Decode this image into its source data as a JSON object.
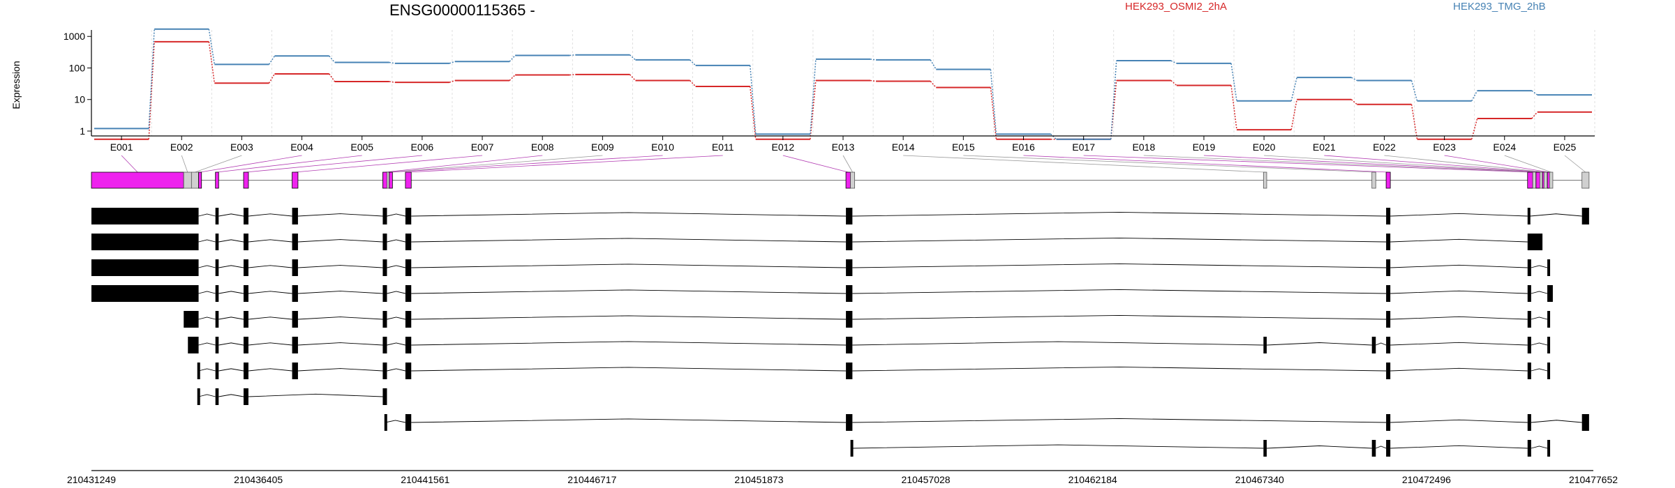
{
  "chart_data": {
    "type": "line",
    "title": "ENSG00000115365 -",
    "xlabel": "",
    "ylabel": "Expression",
    "y_scale": "log",
    "ylim": [
      0.7,
      1600
    ],
    "y_ticks": [
      1,
      10,
      100,
      1000
    ],
    "y_tick_labels": [
      "1",
      "10",
      "100",
      "1000"
    ],
    "grid": true,
    "legend_position": "top-right",
    "categories": [
      "E001",
      "E002",
      "E003",
      "E004",
      "E005",
      "E006",
      "E007",
      "E008",
      "E009",
      "E010",
      "E011",
      "E012",
      "E013",
      "E014",
      "E015",
      "E016",
      "E017",
      "E018",
      "E019",
      "E020",
      "E021",
      "E022",
      "E023",
      "E024",
      "E025"
    ],
    "series": [
      {
        "name": "HEK293_OSMI2_2hA",
        "color": "#d62728",
        "values": [
          0.55,
          680,
          33,
          65,
          37,
          35,
          40,
          60,
          62,
          40,
          26,
          0.55,
          40,
          38,
          24,
          0.55,
          0.55,
          40,
          28,
          1.1,
          10,
          7,
          0.55,
          2.5,
          4
        ]
      },
      {
        "name": "HEK293_TMG_2hB",
        "color": "#4682b4",
        "values": [
          1.2,
          1700,
          130,
          240,
          150,
          140,
          160,
          250,
          260,
          180,
          120,
          0.8,
          190,
          180,
          90,
          0.8,
          0.55,
          170,
          140,
          9,
          50,
          40,
          9,
          19,
          14
        ]
      }
    ],
    "genomic_axis": {
      "ticks": [
        210431249,
        210436405,
        210441561,
        210446717,
        210451873,
        210457028,
        210462184,
        210467340,
        210472496,
        210477652
      ],
      "labels": [
        "210431249",
        "210436405",
        "210441561",
        "210446717",
        "210451873",
        "210457028",
        "210462184",
        "210467340",
        "210472496",
        "210477652"
      ]
    },
    "exons": [
      {
        "id": "E001",
        "start": 210431249,
        "end": 210434100,
        "highlight": true
      },
      {
        "id": "E002",
        "start": 210434100,
        "end": 210434340,
        "highlight": false
      },
      {
        "id": "E003",
        "start": 210434340,
        "end": 210434560,
        "highlight": false
      },
      {
        "id": "E004",
        "start": 210434560,
        "end": 210434650,
        "highlight": true
      },
      {
        "id": "E005",
        "start": 210435080,
        "end": 210435180,
        "highlight": true
      },
      {
        "id": "E006",
        "start": 210435950,
        "end": 210436100,
        "highlight": true
      },
      {
        "id": "E007",
        "start": 210437450,
        "end": 210437630,
        "highlight": true
      },
      {
        "id": "E008",
        "start": 210440250,
        "end": 210440380,
        "highlight": true
      },
      {
        "id": "E009",
        "start": 210440380,
        "end": 210440450,
        "highlight": false
      },
      {
        "id": "E010",
        "start": 210440450,
        "end": 210440550,
        "highlight": true
      },
      {
        "id": "E011",
        "start": 210440950,
        "end": 210441130,
        "highlight": true
      },
      {
        "id": "E012",
        "start": 210454560,
        "end": 210454700,
        "highlight": true
      },
      {
        "id": "E013",
        "start": 210454700,
        "end": 210454830,
        "highlight": false
      },
      {
        "id": "E014",
        "start": 210467460,
        "end": 210467560,
        "highlight": false
      },
      {
        "id": "E015",
        "start": 210470810,
        "end": 210470930,
        "highlight": false
      },
      {
        "id": "E016",
        "start": 210471250,
        "end": 210471380,
        "highlight": true
      },
      {
        "id": "E017",
        "start": 210475620,
        "end": 210475780,
        "highlight": true
      },
      {
        "id": "E018",
        "start": 210475780,
        "end": 210475880,
        "highlight": false
      },
      {
        "id": "E019",
        "start": 210475880,
        "end": 210476000,
        "highlight": true
      },
      {
        "id": "E020",
        "start": 210476000,
        "end": 210476080,
        "highlight": false
      },
      {
        "id": "E021",
        "start": 210476080,
        "end": 210476130,
        "highlight": true
      },
      {
        "id": "E022",
        "start": 210476130,
        "end": 210476230,
        "highlight": false
      },
      {
        "id": "E023",
        "start": 210476230,
        "end": 210476300,
        "highlight": true
      },
      {
        "id": "E024",
        "start": 210476300,
        "end": 210476400,
        "highlight": false
      },
      {
        "id": "E025",
        "start": 210477300,
        "end": 210477520,
        "highlight": false
      }
    ],
    "transcripts": [
      [
        [
          210431249,
          210434560
        ],
        [
          210435080,
          210435180
        ],
        [
          210435950,
          210436100
        ],
        [
          210437450,
          210437630
        ],
        [
          210440250,
          210440380
        ],
        [
          210440950,
          210441130
        ],
        [
          210454560,
          210454760
        ],
        [
          210471250,
          210471380
        ],
        [
          210475620,
          210475700
        ],
        [
          210477300,
          210477520
        ]
      ],
      [
        [
          210431249,
          210434560
        ],
        [
          210435080,
          210435180
        ],
        [
          210435950,
          210436100
        ],
        [
          210437450,
          210437630
        ],
        [
          210440250,
          210440380
        ],
        [
          210440950,
          210441130
        ],
        [
          210454560,
          210454760
        ],
        [
          210471250,
          210471380
        ],
        [
          210475620,
          210476080
        ]
      ],
      [
        [
          210431249,
          210434560
        ],
        [
          210435080,
          210435180
        ],
        [
          210435950,
          210436100
        ],
        [
          210437450,
          210437630
        ],
        [
          210440250,
          210440380
        ],
        [
          210440950,
          210441130
        ],
        [
          210454560,
          210454760
        ],
        [
          210471250,
          210471380
        ],
        [
          210475620,
          210475730
        ],
        [
          210476230,
          210476300
        ]
      ],
      [
        [
          210431249,
          210434560
        ],
        [
          210435080,
          210435180
        ],
        [
          210435950,
          210436100
        ],
        [
          210437450,
          210437630
        ],
        [
          210440250,
          210440380
        ],
        [
          210440950,
          210441130
        ],
        [
          210454560,
          210454760
        ],
        [
          210471250,
          210471380
        ],
        [
          210475620,
          210475730
        ],
        [
          210476230,
          210476400
        ]
      ],
      [
        [
          210434100,
          210434560
        ],
        [
          210435080,
          210435180
        ],
        [
          210435950,
          210436100
        ],
        [
          210437450,
          210437630
        ],
        [
          210440250,
          210440380
        ],
        [
          210440950,
          210441130
        ],
        [
          210454560,
          210454760
        ],
        [
          210471250,
          210471380
        ],
        [
          210475620,
          210475730
        ],
        [
          210476230,
          210476300
        ]
      ],
      [
        [
          210434230,
          210434560
        ],
        [
          210435080,
          210435180
        ],
        [
          210435950,
          210436100
        ],
        [
          210437450,
          210437630
        ],
        [
          210440250,
          210440380
        ],
        [
          210440950,
          210441130
        ],
        [
          210454560,
          210454760
        ],
        [
          210467460,
          210467560
        ],
        [
          210470810,
          210470930
        ],
        [
          210471250,
          210471380
        ],
        [
          210475620,
          210475730
        ],
        [
          210476230,
          210476300
        ]
      ],
      [
        [
          210434520,
          210434560
        ],
        [
          210435080,
          210435180
        ],
        [
          210435950,
          210436100
        ],
        [
          210437450,
          210437630
        ],
        [
          210440250,
          210440380
        ],
        [
          210440950,
          210441130
        ],
        [
          210454560,
          210454760
        ],
        [
          210471250,
          210471380
        ],
        [
          210475620,
          210475730
        ],
        [
          210476230,
          210476300
        ]
      ],
      [
        [
          210434520,
          210434560
        ],
        [
          210435080,
          210435180
        ],
        [
          210435950,
          210436100
        ],
        [
          210440250,
          210440380
        ]
      ],
      [
        [
          210440300,
          210440330
        ],
        [
          210440950,
          210441130
        ],
        [
          210454560,
          210454760
        ],
        [
          210471250,
          210471380
        ],
        [
          210475620,
          210475730
        ],
        [
          210477300,
          210477520
        ]
      ],
      [
        [
          210454700,
          210454760
        ],
        [
          210467460,
          210467560
        ],
        [
          210470810,
          210470930
        ],
        [
          210471250,
          210471380
        ],
        [
          210475620,
          210475730
        ],
        [
          210476230,
          210476300
        ]
      ]
    ]
  }
}
